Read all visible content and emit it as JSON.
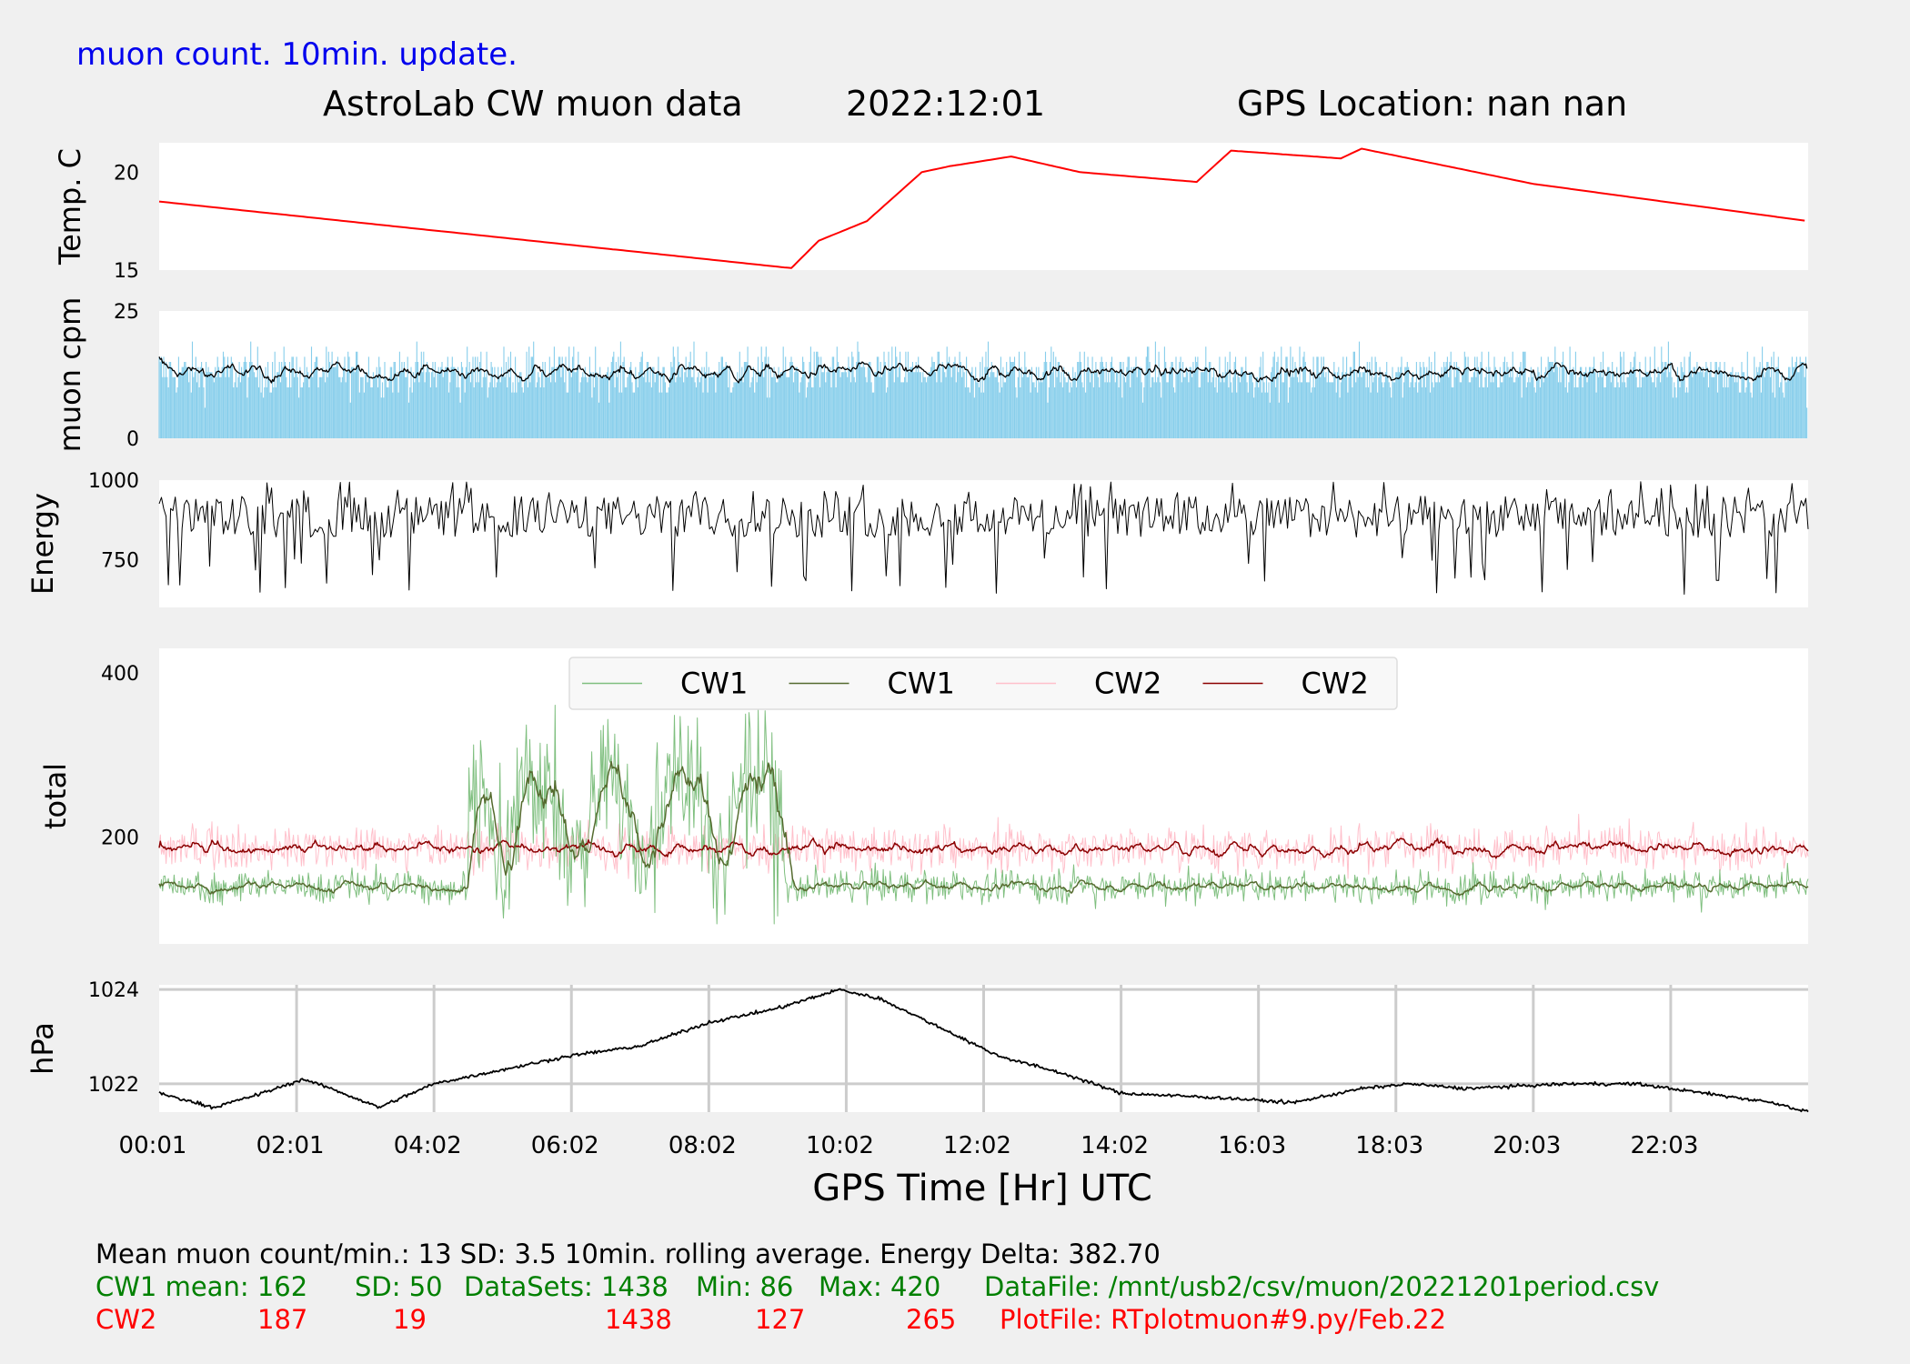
{
  "header": {
    "note": "muon count.  10min. update.",
    "title_left": "AstroLab CW muon data",
    "title_date": "2022:12:01",
    "title_gps": "GPS Location: nan   nan"
  },
  "colors": {
    "temp": "#ff0000",
    "cpm_bars": "#87ceeb",
    "cpm_avg": "#000000",
    "energy": "#000000",
    "cw1_raw": "#7fbf7f",
    "cw1_avg": "#556b2f",
    "cw2_raw": "#ffc0cb",
    "cw2_avg": "#8b0000",
    "pressure": "#000000",
    "note_blue": "#0000ee",
    "stats_green": "#008000",
    "stats_red": "#ff0000"
  },
  "chart_data": [
    {
      "type": "line",
      "ylabel": "Temp. C",
      "yticks": [
        15,
        20
      ],
      "ylim": [
        15,
        21.5
      ],
      "series": [
        {
          "color": "#ff0000",
          "points": [
            [
              0,
              18.5
            ],
            [
              9.2,
              15.1
            ],
            [
              9.6,
              16.5
            ],
            [
              10.3,
              17.5
            ],
            [
              11.1,
              20.0
            ],
            [
              11.5,
              20.3
            ],
            [
              12.4,
              20.8
            ],
            [
              13.4,
              20.0
            ],
            [
              15.1,
              19.5
            ],
            [
              15.6,
              21.1
            ],
            [
              17.2,
              20.7
            ],
            [
              17.5,
              21.2
            ],
            [
              20.0,
              19.4
            ],
            [
              24,
              17.5
            ]
          ]
        }
      ],
      "grid": false
    },
    {
      "type": "bar",
      "ylabel": "muon cpm",
      "yticks": [
        0,
        25
      ],
      "ylim": [
        0,
        25
      ],
      "mean": 13,
      "sd": 3.5,
      "rolling_average": "10min.",
      "series": [
        {
          "color": "#87ceeb"
        },
        {
          "color": "#000000"
        }
      ],
      "grid": false
    },
    {
      "type": "line",
      "ylabel": "Energy",
      "yticks": [
        750,
        1000
      ],
      "ylim": [
        600,
        1000
      ],
      "typical_range": [
        820,
        950
      ],
      "series": [
        {
          "color": "#000000"
        }
      ],
      "grid": false
    },
    {
      "type": "line",
      "ylabel": "total",
      "yticks": [
        200,
        400
      ],
      "ylim": [
        70,
        430
      ],
      "legend": {
        "entries": [
          "CW1",
          "CW1",
          "CW2",
          "CW2"
        ],
        "placement": "top-center"
      },
      "series": [
        {
          "name": "CW1",
          "color": "#7fbf7f",
          "mean": 162,
          "sd": 50,
          "datasets": 1438,
          "min": 86,
          "max": 420,
          "elevated_period": [
            4.5,
            9.1
          ],
          "elevated_avg": 270
        },
        {
          "name": "CW1",
          "color": "#556b2f"
        },
        {
          "name": "CW2",
          "color": "#ffc0cb",
          "mean": 187,
          "sd": 19,
          "datasets": 1438,
          "min": 127,
          "max": 265
        },
        {
          "name": "CW2",
          "color": "#8b0000"
        }
      ],
      "grid": false
    },
    {
      "type": "line",
      "ylabel": "hPa",
      "yticks": [
        1022,
        1024
      ],
      "ylim": [
        1021.4,
        1024.1
      ],
      "series": [
        {
          "color": "#000000",
          "points": [
            [
              0,
              1021.8
            ],
            [
              0.8,
              1021.5
            ],
            [
              1.5,
              1021.8
            ],
            [
              2.1,
              1022.1
            ],
            [
              2.5,
              1021.9
            ],
            [
              3.2,
              1021.5
            ],
            [
              4.0,
              1022.0
            ],
            [
              5.0,
              1022.3
            ],
            [
              6.0,
              1022.6
            ],
            [
              7.0,
              1022.8
            ],
            [
              8.0,
              1023.3
            ],
            [
              9.0,
              1023.6
            ],
            [
              9.9,
              1024.0
            ],
            [
              10.5,
              1023.8
            ],
            [
              11.5,
              1023.1
            ],
            [
              12.2,
              1022.6
            ],
            [
              13.2,
              1022.2
            ],
            [
              14.0,
              1021.8
            ],
            [
              15.5,
              1021.7
            ],
            [
              16.5,
              1021.6
            ],
            [
              17.5,
              1021.9
            ],
            [
              18.2,
              1022.0
            ],
            [
              19.0,
              1021.9
            ],
            [
              20.5,
              1022.0
            ],
            [
              21.5,
              1022.0
            ],
            [
              22.5,
              1021.8
            ],
            [
              23.5,
              1021.6
            ],
            [
              24,
              1021.4
            ]
          ]
        }
      ],
      "grid": true
    }
  ],
  "xaxis": {
    "label": "GPS Time  [Hr] UTC",
    "ticks": [
      "00:01",
      "02:01",
      "04:02",
      "06:02",
      "08:02",
      "10:02",
      "12:02",
      "14:02",
      "16:03",
      "18:03",
      "20:03",
      "22:03"
    ]
  },
  "stats": {
    "line1": "Mean muon count/min.: 13  SD: 3.5   10min. rolling average.    Energy Delta:  382.70",
    "cw1": {
      "label": "CW1 mean: 162",
      "sd": "SD: 50",
      "datasets": "DataSets: 1438",
      "min": "Min: 86",
      "max": "Max: 420",
      "file": "DataFile: /mnt/usb2/csv/muon/20221201period.csv"
    },
    "cw2": {
      "label": "CW2",
      "mean": "187",
      "sd": "19",
      "datasets": "1438",
      "min": "127",
      "max": "265",
      "file": "PlotFile: RTplotmuon#9.py/Feb.22"
    }
  }
}
